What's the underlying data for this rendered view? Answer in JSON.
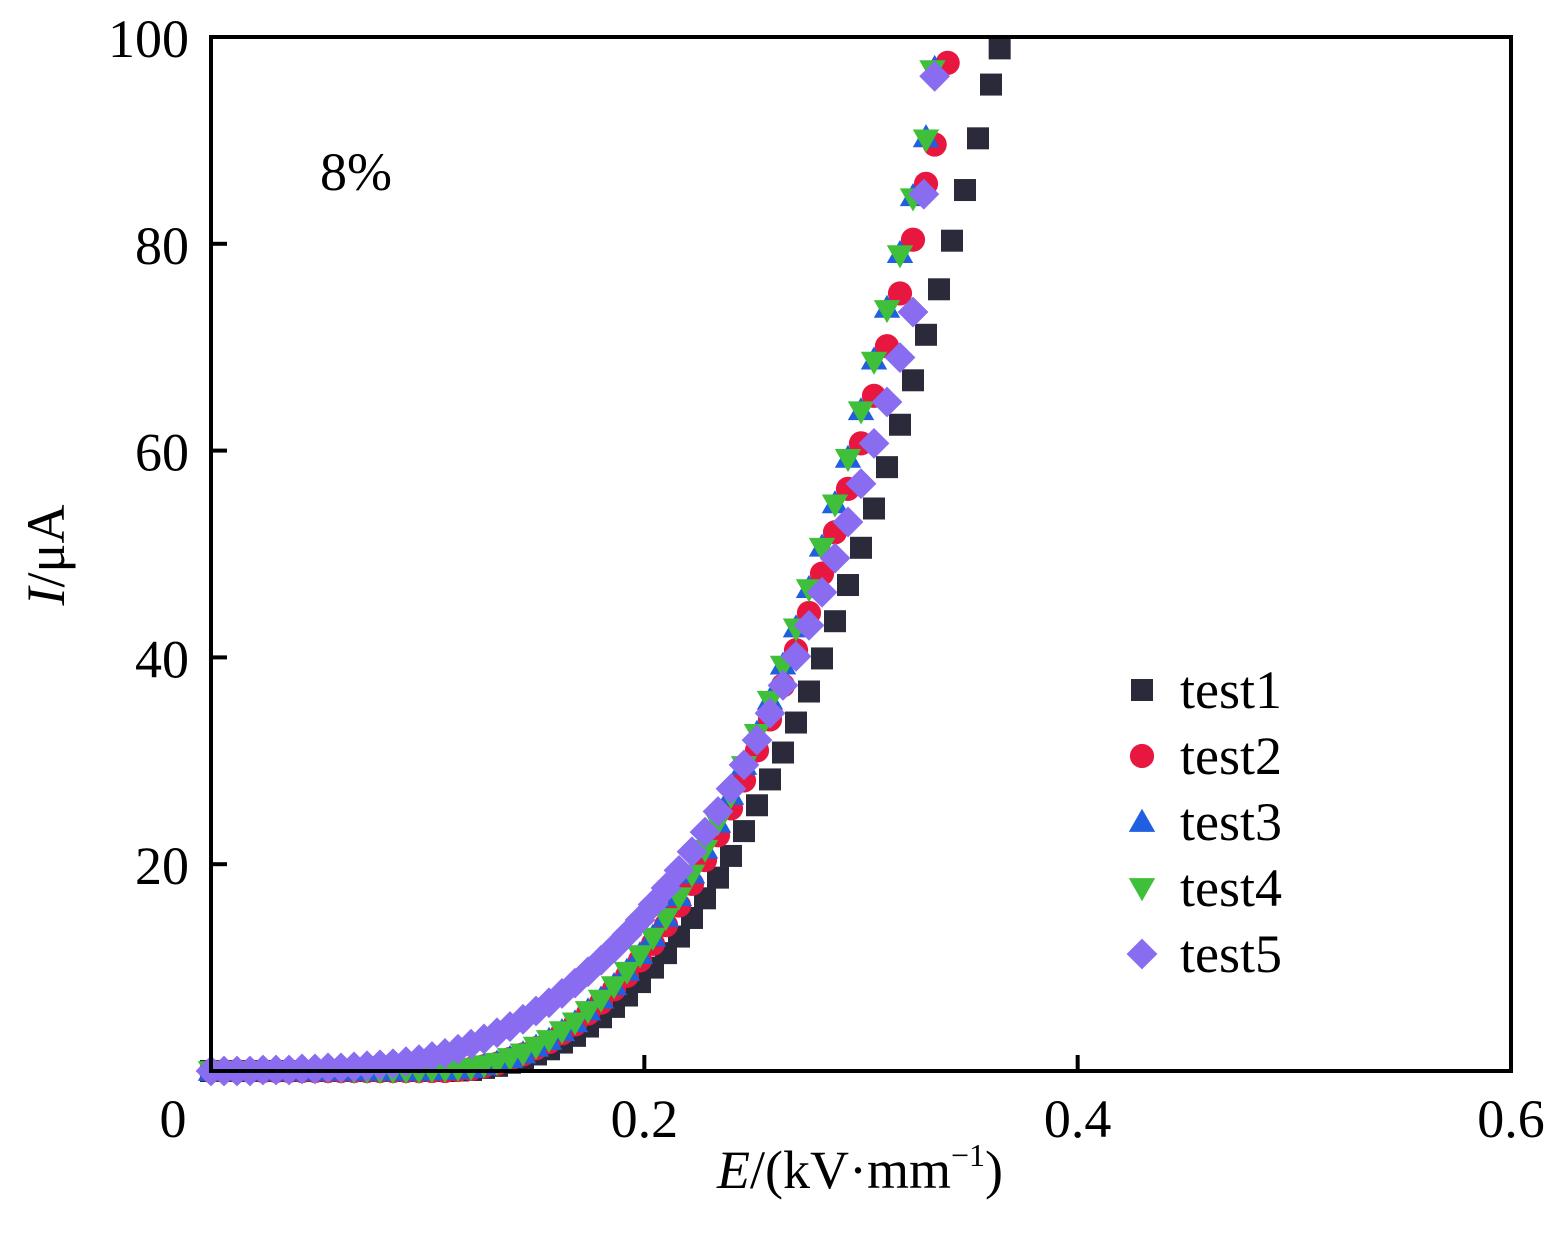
{
  "chart_data": {
    "type": "scatter",
    "title": "",
    "annotation": "8%",
    "xlabel": {
      "italic": "E",
      "rest": "/(kV·mm",
      "sup": "−1",
      "close": ")"
    },
    "ylabel": {
      "italic": "I",
      "rest": "/μA"
    },
    "xlim": [
      0,
      0.6
    ],
    "ylim": [
      0,
      100
    ],
    "xticks": [
      0,
      0.2,
      0.4,
      0.6
    ],
    "xtick_labels": [
      "0",
      "0.2",
      "0.4",
      "0.6"
    ],
    "yticks": [
      20,
      40,
      60,
      80,
      100
    ],
    "ytick_labels": [
      "20",
      "40",
      "60",
      "80",
      "100"
    ],
    "grid": false,
    "legend_position": "center-right",
    "series": [
      {
        "name": "test1",
        "marker": "square",
        "color": "#2b2a3a",
        "x": [
          0.0,
          0.012,
          0.024,
          0.036,
          0.048,
          0.06,
          0.072,
          0.084,
          0.096,
          0.108,
          0.12,
          0.132,
          0.144,
          0.156,
          0.168,
          0.18,
          0.186,
          0.192,
          0.198,
          0.204,
          0.21,
          0.216,
          0.222,
          0.228,
          0.234,
          0.24,
          0.246,
          0.252,
          0.258,
          0.264,
          0.27,
          0.276,
          0.282,
          0.288,
          0.294,
          0.3,
          0.306,
          0.312,
          0.318,
          0.324,
          0.33,
          0.336,
          0.342,
          0.348,
          0.354,
          0.36,
          0.364
        ],
        "y": [
          0.0,
          0.0,
          0.0,
          0.0,
          0.0,
          0.0,
          0.0,
          0.0,
          0.0,
          0.0,
          0.1,
          0.5,
          1.1,
          2.1,
          3.4,
          5.2,
          6.2,
          7.3,
          8.6,
          10.0,
          11.4,
          13.0,
          14.8,
          16.7,
          18.7,
          20.8,
          23.2,
          25.7,
          28.2,
          30.8,
          33.7,
          36.7,
          39.9,
          43.5,
          47.0,
          50.6,
          54.4,
          58.4,
          62.5,
          66.8,
          71.2,
          75.6,
          80.3,
          85.2,
          90.2,
          95.4,
          98.9
        ]
      },
      {
        "name": "test2",
        "marker": "circle",
        "color": "#e8173f",
        "x": [
          0.0,
          0.012,
          0.024,
          0.036,
          0.048,
          0.06,
          0.072,
          0.084,
          0.096,
          0.108,
          0.12,
          0.132,
          0.144,
          0.156,
          0.168,
          0.18,
          0.186,
          0.192,
          0.198,
          0.204,
          0.21,
          0.216,
          0.222,
          0.228,
          0.234,
          0.24,
          0.246,
          0.252,
          0.258,
          0.264,
          0.27,
          0.276,
          0.282,
          0.288,
          0.294,
          0.3,
          0.306,
          0.312,
          0.318,
          0.324,
          0.33,
          0.334,
          0.34
        ],
        "y": [
          0.0,
          0.0,
          0.0,
          0.0,
          0.0,
          0.0,
          0.0,
          0.0,
          0.0,
          0.0,
          0.2,
          0.7,
          1.6,
          2.8,
          4.5,
          6.6,
          7.9,
          9.2,
          10.7,
          12.3,
          14.1,
          16.0,
          18.1,
          20.4,
          22.8,
          25.4,
          28.1,
          31.0,
          34.0,
          37.3,
          40.7,
          44.3,
          48.1,
          52.1,
          56.3,
          60.7,
          65.3,
          70.1,
          75.2,
          80.4,
          85.8,
          89.6,
          97.5
        ]
      },
      {
        "name": "test3",
        "marker": "triangle-up",
        "color": "#1f5fe0",
        "x": [
          0.0,
          0.012,
          0.024,
          0.036,
          0.048,
          0.06,
          0.072,
          0.084,
          0.096,
          0.108,
          0.12,
          0.132,
          0.144,
          0.156,
          0.168,
          0.18,
          0.186,
          0.192,
          0.198,
          0.204,
          0.21,
          0.216,
          0.222,
          0.228,
          0.234,
          0.24,
          0.246,
          0.252,
          0.258,
          0.264,
          0.27,
          0.276,
          0.282,
          0.288,
          0.294,
          0.3,
          0.306,
          0.312,
          0.318,
          0.324,
          0.33,
          0.334
        ],
        "y": [
          0.0,
          0.0,
          0.0,
          0.0,
          0.0,
          0.0,
          0.0,
          0.0,
          0.0,
          0.1,
          0.3,
          0.8,
          1.7,
          3.0,
          4.7,
          7.0,
          8.3,
          9.7,
          11.3,
          13.0,
          14.9,
          16.9,
          19.1,
          21.5,
          24.0,
          26.7,
          29.6,
          32.7,
          35.9,
          39.3,
          42.9,
          46.7,
          50.7,
          54.9,
          59.3,
          63.9,
          68.8,
          73.8,
          79.1,
          84.6,
          90.3,
          97.0
        ]
      },
      {
        "name": "test4",
        "marker": "triangle-down",
        "color": "#3fbf3a",
        "x": [
          0.0,
          0.012,
          0.024,
          0.036,
          0.048,
          0.06,
          0.072,
          0.084,
          0.096,
          0.108,
          0.12,
          0.132,
          0.144,
          0.156,
          0.168,
          0.18,
          0.186,
          0.192,
          0.198,
          0.204,
          0.21,
          0.216,
          0.222,
          0.228,
          0.234,
          0.24,
          0.246,
          0.252,
          0.258,
          0.264,
          0.27,
          0.276,
          0.282,
          0.288,
          0.294,
          0.3,
          0.306,
          0.312,
          0.318,
          0.324,
          0.33,
          0.333
        ],
        "y": [
          0.0,
          0.0,
          0.0,
          0.0,
          0.0,
          0.0,
          0.0,
          0.0,
          0.0,
          0.1,
          0.3,
          0.8,
          1.7,
          3.0,
          4.7,
          6.9,
          8.2,
          9.6,
          11.2,
          12.9,
          14.8,
          16.8,
          19.0,
          21.4,
          24.0,
          26.6,
          29.5,
          32.6,
          35.8,
          39.2,
          42.8,
          46.6,
          50.6,
          54.8,
          59.2,
          63.8,
          68.6,
          73.6,
          78.9,
          84.4,
          90.1,
          96.8
        ]
      },
      {
        "name": "test5",
        "marker": "diamond",
        "color": "#8a6cf0",
        "x": [
          0.0,
          0.006,
          0.012,
          0.018,
          0.024,
          0.03,
          0.036,
          0.042,
          0.048,
          0.054,
          0.06,
          0.066,
          0.072,
          0.078,
          0.084,
          0.09,
          0.096,
          0.102,
          0.108,
          0.114,
          0.12,
          0.126,
          0.132,
          0.138,
          0.144,
          0.15,
          0.156,
          0.162,
          0.168,
          0.174,
          0.18,
          0.186,
          0.192,
          0.198,
          0.204,
          0.21,
          0.216,
          0.222,
          0.228,
          0.234,
          0.24,
          0.246,
          0.252,
          0.258,
          0.264,
          0.27,
          0.276,
          0.282,
          0.288,
          0.294,
          0.3,
          0.306,
          0.312,
          0.318,
          0.324,
          0.334
        ],
        "y": [
          0.0,
          0.0,
          0.0,
          0.0,
          0.1,
          0.1,
          0.1,
          0.2,
          0.2,
          0.3,
          0.3,
          0.4,
          0.5,
          0.6,
          0.7,
          0.9,
          1.1,
          1.4,
          1.7,
          2.1,
          2.6,
          3.1,
          3.7,
          4.3,
          5.0,
          5.8,
          6.6,
          7.5,
          8.5,
          9.6,
          10.7,
          11.9,
          13.2,
          14.6,
          16.1,
          17.7,
          19.4,
          21.2,
          23.1,
          25.1,
          27.3,
          29.6,
          32.0,
          34.6,
          37.3,
          40.1,
          43.1,
          46.3,
          49.6,
          53.1,
          56.8,
          60.7,
          64.7,
          69.0,
          73.4,
          96.2
        ]
      }
    ]
  }
}
